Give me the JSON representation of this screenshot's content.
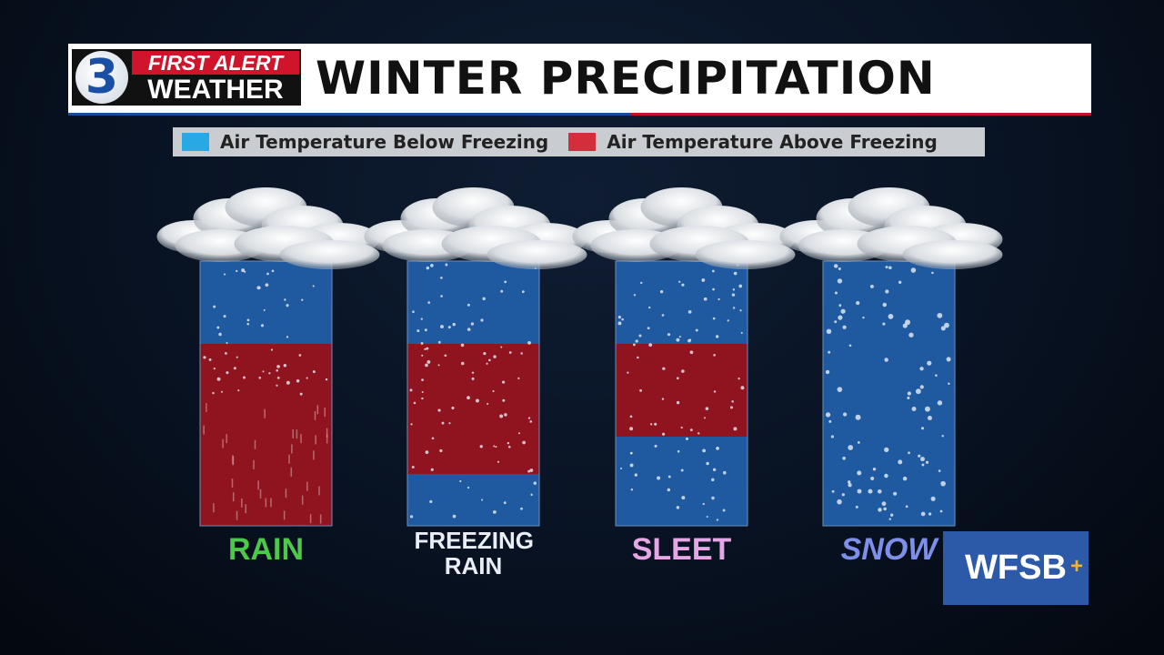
{
  "header": {
    "logo_number": "3",
    "logo_line1": "FIRST ALERT",
    "logo_line2": "WEATHER",
    "title": "WINTER PRECIPITATION"
  },
  "legend": [
    {
      "label": "Air Temperature Below Freezing",
      "color": "#29a8e6"
    },
    {
      "label": "Air Temperature Above Freezing",
      "color": "#d42e3c"
    }
  ],
  "columns": [
    {
      "label": "RAIN"
    },
    {
      "label": "FREEZING RAIN"
    },
    {
      "label": "SLEET"
    },
    {
      "label": "SNOW"
    }
  ],
  "station": {
    "name": "WFSB"
  }
}
